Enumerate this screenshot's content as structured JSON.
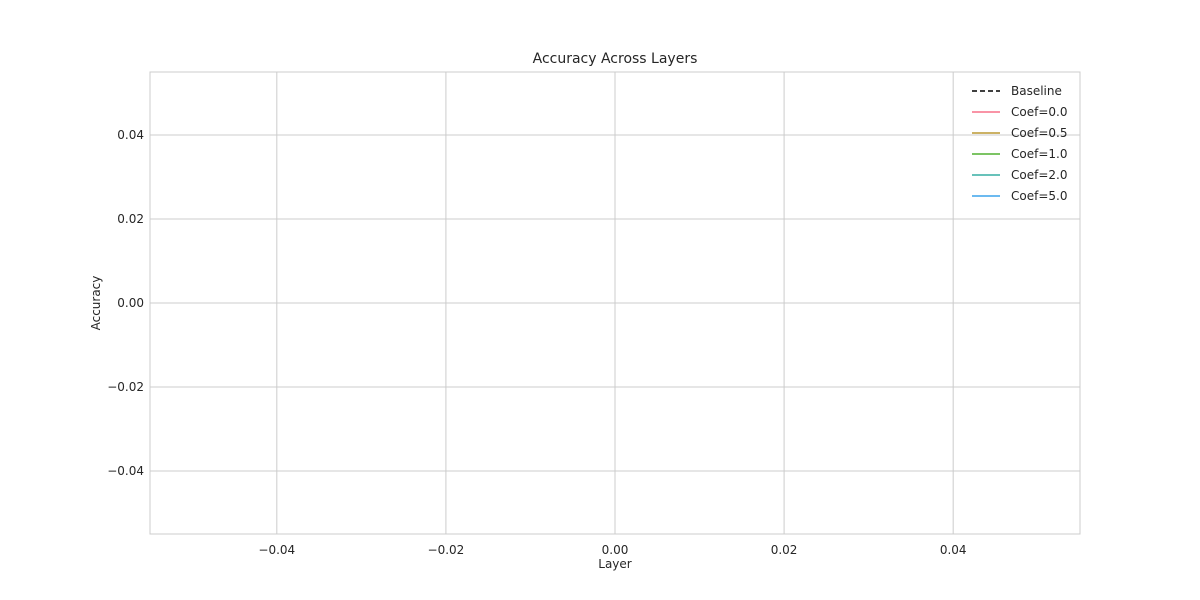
{
  "chart_data": {
    "type": "line",
    "title": "Accuracy Across Layers",
    "xlabel": "Layer",
    "ylabel": "Accuracy",
    "xlim": [
      -0.055,
      0.055
    ],
    "ylim": [
      -0.055,
      0.055
    ],
    "x_ticks": [
      -0.04,
      -0.02,
      0.0,
      0.02,
      0.04
    ],
    "y_ticks": [
      -0.04,
      -0.02,
      0.0,
      0.02,
      0.04
    ],
    "x_tick_labels": [
      "−0.04",
      "−0.02",
      "0.00",
      "0.02",
      "0.04"
    ],
    "y_tick_labels": [
      "−0.04",
      "−0.02",
      "0.00",
      "0.02",
      "0.04"
    ],
    "grid": true,
    "legend_position": "top-right",
    "series": [
      {
        "name": "Baseline",
        "color": "#000000",
        "dashed": true,
        "x": [],
        "y": []
      },
      {
        "name": "Coef=0.0",
        "color": "#f77189",
        "dashed": false,
        "x": [],
        "y": []
      },
      {
        "name": "Coef=0.5",
        "color": "#bb9832",
        "dashed": false,
        "x": [],
        "y": []
      },
      {
        "name": "Coef=1.0",
        "color": "#50b131",
        "dashed": false,
        "x": [],
        "y": []
      },
      {
        "name": "Coef=2.0",
        "color": "#36ada4",
        "dashed": false,
        "x": [],
        "y": []
      },
      {
        "name": "Coef=5.0",
        "color": "#3ba3ec",
        "dashed": false,
        "x": [],
        "y": []
      }
    ]
  }
}
